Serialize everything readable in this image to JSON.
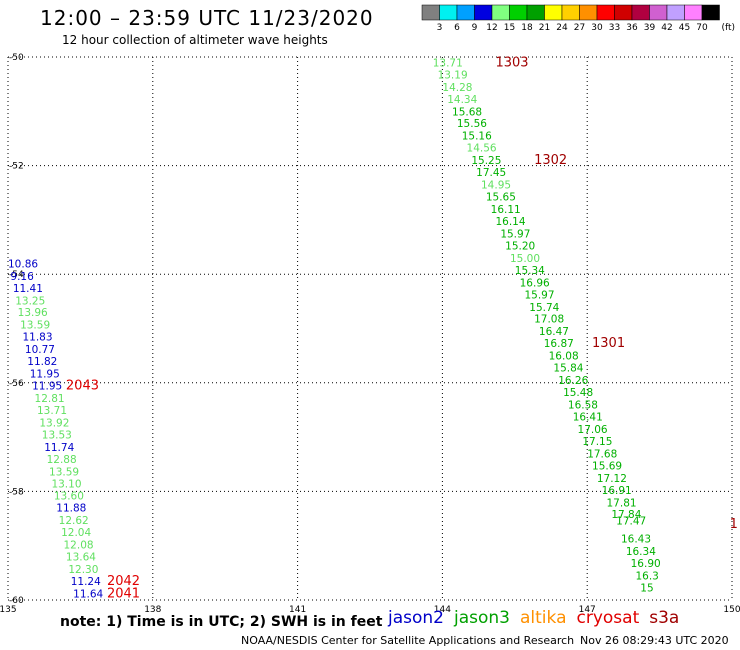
{
  "title": "12:00 – 23:59 UTC 11/23/2020",
  "subtitle": "12 hour collection of altimeter wave heights",
  "note": "note: 1) Time is in UTC; 2) SWH is in feet",
  "credit": "NOAA/NESDIS Center for Satellite Applications and Research",
  "timestamp": "Nov 26 08:29:43 UTC 2020",
  "color_scale": {
    "unit": "(ft)",
    "labels": [
      "3",
      "6",
      "9",
      "12",
      "15",
      "18",
      "21",
      "24",
      "27",
      "30",
      "33",
      "36",
      "39",
      "42",
      "45",
      "70"
    ],
    "colors": [
      "#808080",
      "#00f0f0",
      "#00a0ff",
      "#0000e0",
      "#80ff80",
      "#00d000",
      "#00a000",
      "#ffff00",
      "#ffd000",
      "#ff9000",
      "#ff0000",
      "#d00000",
      "#b00040",
      "#d060d0",
      "#c0a0ff",
      "#ff80ff",
      "#000000"
    ]
  },
  "satellites": [
    {
      "name": "jason2",
      "color": "#0000c8"
    },
    {
      "name": "jason3",
      "color": "#00a000"
    },
    {
      "name": "altika",
      "color": "#ff9000"
    },
    {
      "name": "cryosat",
      "color": "#e00000"
    },
    {
      "name": "s3a",
      "color": "#a00000"
    }
  ],
  "chart_data": {
    "type": "scatter",
    "title": "12:00 – 23:59 UTC 11/23/2020",
    "subtitle": "12 hour collection of altimeter wave heights",
    "xlim": [
      135,
      150
    ],
    "ylim": [
      -60,
      -50
    ],
    "x_ticks": [
      "135",
      "138",
      "141",
      "144",
      "147",
      "150"
    ],
    "y_ticks": [
      "-50",
      "-52",
      "-54",
      "-56",
      "-58",
      "-60"
    ],
    "grid": true,
    "tracks": [
      {
        "color": "#006000",
        "labels": [
          {
            "text": "13.71",
            "x": 143.8,
            "y": -50.1,
            "c": "#60e060"
          },
          {
            "text": "13.19",
            "x": 143.9,
            "y": -50.32,
            "c": "#60e060"
          },
          {
            "text": "14.28",
            "x": 144.0,
            "y": -50.55,
            "c": "#60e060"
          },
          {
            "text": "14.34",
            "x": 144.1,
            "y": -50.77,
            "c": "#60e060"
          },
          {
            "text": "15.68",
            "x": 144.2,
            "y": -51.0,
            "c": "#00b000"
          },
          {
            "text": "15.56",
            "x": 144.3,
            "y": -51.22,
            "c": "#00b000"
          },
          {
            "text": "15.16",
            "x": 144.4,
            "y": -51.45,
            "c": "#00b000"
          },
          {
            "text": "14.56",
            "x": 144.5,
            "y": -51.67,
            "c": "#60e060"
          },
          {
            "text": "15.25",
            "x": 144.6,
            "y": -51.9,
            "c": "#00b000"
          },
          {
            "text": "17.45",
            "x": 144.7,
            "y": -52.12,
            "c": "#00b000"
          },
          {
            "text": "14.95",
            "x": 144.8,
            "y": -52.35,
            "c": "#60e060"
          },
          {
            "text": "15.65",
            "x": 144.9,
            "y": -52.57,
            "c": "#00b000"
          },
          {
            "text": "16.11",
            "x": 145.0,
            "y": -52.8,
            "c": "#00b000"
          },
          {
            "text": "16.14",
            "x": 145.1,
            "y": -53.02,
            "c": "#00b000"
          },
          {
            "text": "15.97",
            "x": 145.2,
            "y": -53.25,
            "c": "#00b000"
          },
          {
            "text": "15.20",
            "x": 145.3,
            "y": -53.47,
            "c": "#00b000"
          },
          {
            "text": "15.00",
            "x": 145.4,
            "y": -53.7,
            "c": "#60e060"
          },
          {
            "text": "15.34",
            "x": 145.5,
            "y": -53.92,
            "c": "#00b000"
          },
          {
            "text": "16.96",
            "x": 145.6,
            "y": -54.15,
            "c": "#00b000"
          },
          {
            "text": "15.97",
            "x": 145.7,
            "y": -54.37,
            "c": "#00b000"
          },
          {
            "text": "15.74",
            "x": 145.8,
            "y": -54.6,
            "c": "#00b000"
          },
          {
            "text": "17.08",
            "x": 145.9,
            "y": -54.82,
            "c": "#00b000"
          },
          {
            "text": "16.47",
            "x": 146.0,
            "y": -55.05,
            "c": "#00b000"
          },
          {
            "text": "16.87",
            "x": 146.1,
            "y": -55.27,
            "c": "#00b000"
          },
          {
            "text": "16.08",
            "x": 146.2,
            "y": -55.5,
            "c": "#00b000"
          },
          {
            "text": "15.84",
            "x": 146.3,
            "y": -55.72,
            "c": "#00b000"
          },
          {
            "text": "16.26",
            "x": 146.4,
            "y": -55.95,
            "c": "#00b000"
          },
          {
            "text": "15.48",
            "x": 146.5,
            "y": -56.17,
            "c": "#00b000"
          },
          {
            "text": "16.58",
            "x": 146.6,
            "y": -56.4,
            "c": "#00b000"
          },
          {
            "text": "16.41",
            "x": 146.7,
            "y": -56.62,
            "c": "#00b000"
          },
          {
            "text": "17.06",
            "x": 146.8,
            "y": -56.85,
            "c": "#00b000"
          },
          {
            "text": "17.15",
            "x": 146.9,
            "y": -57.07,
            "c": "#00b000"
          },
          {
            "text": "17.68",
            "x": 147.0,
            "y": -57.3,
            "c": "#00b000"
          },
          {
            "text": "15.69",
            "x": 147.1,
            "y": -57.52,
            "c": "#00b000"
          },
          {
            "text": "17.12",
            "x": 147.2,
            "y": -57.75,
            "c": "#00b000"
          },
          {
            "text": "16.91",
            "x": 147.3,
            "y": -57.97,
            "c": "#00b000"
          },
          {
            "text": "17.81",
            "x": 147.4,
            "y": -58.2,
            "c": "#00b000"
          },
          {
            "text": "17.84",
            "x": 147.5,
            "y": -58.42,
            "c": "#00b000"
          },
          {
            "text": "17.47",
            "x": 147.6,
            "y": -58.54,
            "c": "#00b000"
          },
          {
            "text": "16.43",
            "x": 147.7,
            "y": -58.87,
            "c": "#00b000"
          },
          {
            "text": "16.34",
            "x": 147.8,
            "y": -59.1,
            "c": "#00b000"
          },
          {
            "text": "16.90",
            "x": 147.9,
            "y": -59.32,
            "c": "#00b000"
          },
          {
            "text": "16.3",
            "x": 148.0,
            "y": -59.55,
            "c": "#00b000"
          },
          {
            "text": "15",
            "x": 148.1,
            "y": -59.77,
            "c": "#00b000"
          }
        ]
      },
      {
        "color": "#000",
        "labels": [
          {
            "text": "10.86",
            "x": 135.0,
            "y": -53.8,
            "c": "#0000c8"
          },
          {
            "text": "9.16",
            "x": 135.05,
            "y": -54.03,
            "c": "#0000c8"
          },
          {
            "text": "11.41",
            "x": 135.1,
            "y": -54.25,
            "c": "#0000c8"
          },
          {
            "text": "13.25",
            "x": 135.15,
            "y": -54.48,
            "c": "#60e060"
          },
          {
            "text": "13.96",
            "x": 135.2,
            "y": -54.7,
            "c": "#60e060"
          },
          {
            "text": "13.59",
            "x": 135.25,
            "y": -54.93,
            "c": "#60e060"
          },
          {
            "text": "11.83",
            "x": 135.3,
            "y": -55.15,
            "c": "#0000c8"
          },
          {
            "text": "10.77",
            "x": 135.35,
            "y": -55.38,
            "c": "#0000c8"
          },
          {
            "text": "11.82",
            "x": 135.4,
            "y": -55.6,
            "c": "#0000c8"
          },
          {
            "text": "11.95",
            "x": 135.45,
            "y": -55.83,
            "c": "#0000c8"
          },
          {
            "text": "11.95",
            "x": 135.5,
            "y": -56.05,
            "c": "#0000c8"
          },
          {
            "text": "12.81",
            "x": 135.55,
            "y": -56.28,
            "c": "#60e060"
          },
          {
            "text": "13.71",
            "x": 135.6,
            "y": -56.5,
            "c": "#60e060"
          },
          {
            "text": "13.92",
            "x": 135.65,
            "y": -56.73,
            "c": "#60e060"
          },
          {
            "text": "13.53",
            "x": 135.7,
            "y": -56.95,
            "c": "#60e060"
          },
          {
            "text": "11.74",
            "x": 135.75,
            "y": -57.18,
            "c": "#0000c8"
          },
          {
            "text": "12.88",
            "x": 135.8,
            "y": -57.4,
            "c": "#60e060"
          },
          {
            "text": "13.59",
            "x": 135.85,
            "y": -57.63,
            "c": "#60e060"
          },
          {
            "text": "13.10",
            "x": 135.9,
            "y": -57.85,
            "c": "#60e060"
          },
          {
            "text": "13.60",
            "x": 135.95,
            "y": -58.08,
            "c": "#60e060"
          },
          {
            "text": "11.88",
            "x": 136.0,
            "y": -58.3,
            "c": "#0000c8"
          },
          {
            "text": "12.62",
            "x": 136.05,
            "y": -58.53,
            "c": "#60e060"
          },
          {
            "text": "12.04",
            "x": 136.1,
            "y": -58.75,
            "c": "#60e060"
          },
          {
            "text": "12.08",
            "x": 136.15,
            "y": -58.98,
            "c": "#60e060"
          },
          {
            "text": "13.64",
            "x": 136.2,
            "y": -59.2,
            "c": "#60e060"
          },
          {
            "text": "12.30",
            "x": 136.25,
            "y": -59.43,
            "c": "#60e060"
          },
          {
            "text": "11.24",
            "x": 136.3,
            "y": -59.65,
            "c": "#0000c8"
          },
          {
            "text": "11.64",
            "x": 136.35,
            "y": -59.88,
            "c": "#0000c8"
          }
        ]
      }
    ],
    "time_labels": [
      {
        "text": "1303",
        "x": 145.1,
        "y": -50.1,
        "c": "#a00000"
      },
      {
        "text": "1302",
        "x": 145.9,
        "y": -51.9,
        "c": "#a00000"
      },
      {
        "text": "1301",
        "x": 147.1,
        "y": -55.27,
        "c": "#a00000"
      },
      {
        "text": "1",
        "x": 149.95,
        "y": -58.6,
        "c": "#a00000"
      },
      {
        "text": "2043",
        "x": 136.2,
        "y": -56.05,
        "c": "#e00000"
      },
      {
        "text": "2042",
        "x": 137.05,
        "y": -59.65,
        "c": "#e00000"
      },
      {
        "text": "2041",
        "x": 137.05,
        "y": -59.88,
        "c": "#e00000"
      }
    ]
  }
}
